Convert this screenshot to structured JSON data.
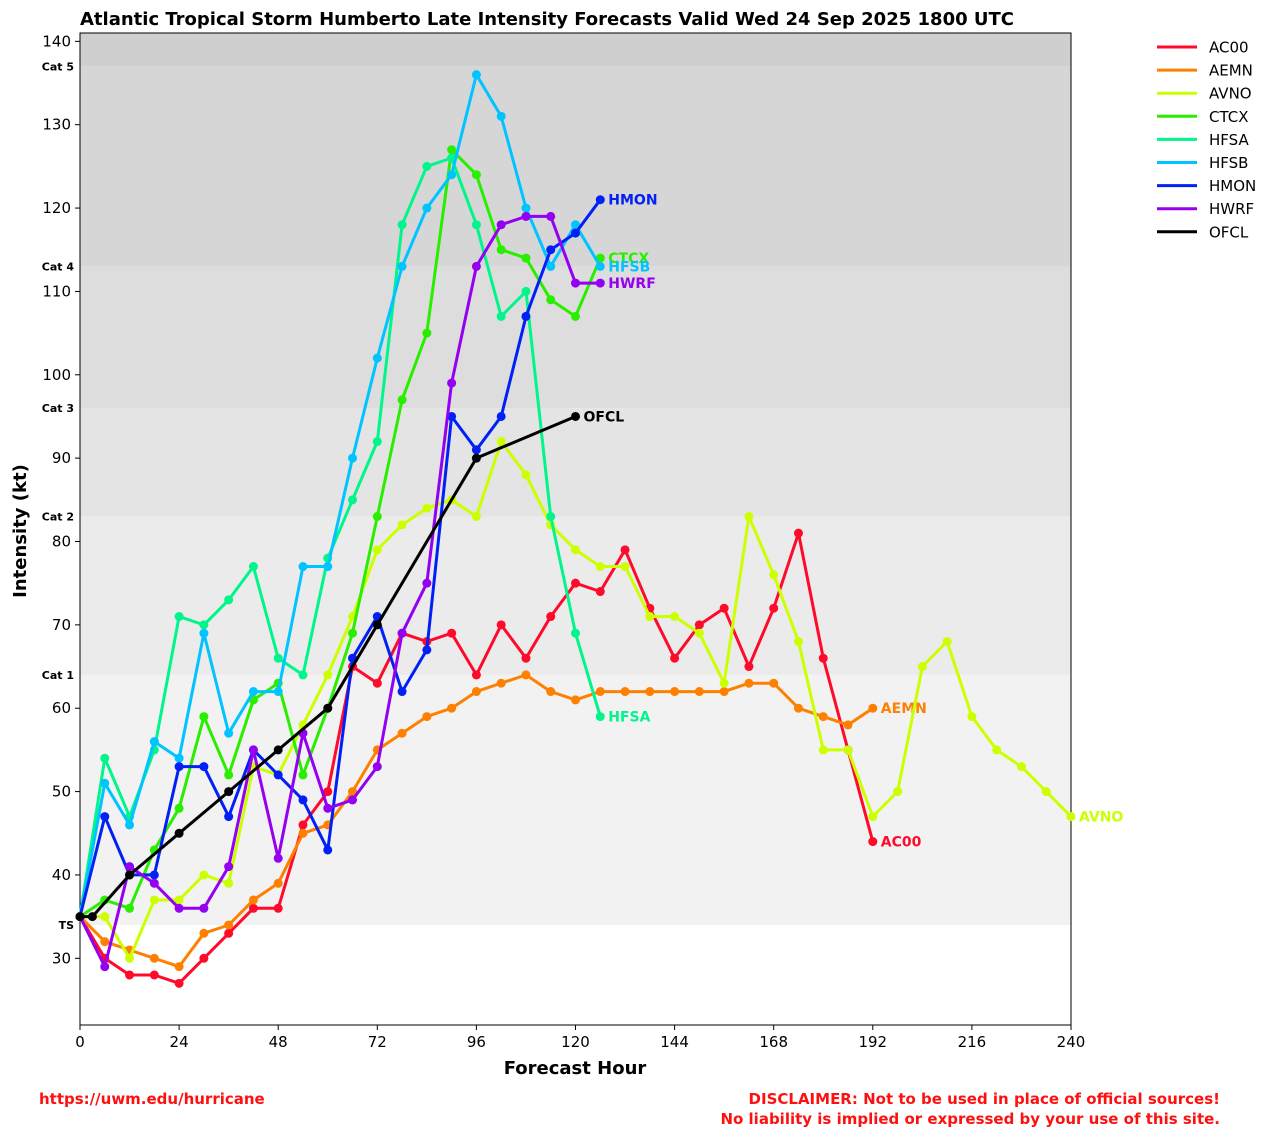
{
  "chart_data": {
    "type": "line",
    "title": "Atlantic Tropical Storm Humberto Late Intensity Forecasts Valid Wed 24 Sep 2025 1800 UTC",
    "xlabel": "Forecast Hour",
    "ylabel": "Intensity (kt)",
    "xlim": [
      0,
      240
    ],
    "ylim": [
      22,
      141
    ],
    "xticks": [
      0,
      24,
      48,
      72,
      96,
      120,
      144,
      168,
      192,
      216,
      240
    ],
    "yticks": [
      30,
      40,
      50,
      60,
      70,
      80,
      90,
      100,
      110,
      120,
      130,
      140
    ],
    "grid": false,
    "legend_position": "outside-right",
    "categories": [
      {
        "label": "TS",
        "value": 34,
        "color": "#f2f2f2"
      },
      {
        "label": "Cat 1",
        "value": 64,
        "color": "#ebebeb"
      },
      {
        "label": "Cat 2",
        "value": 83,
        "color": "#e4e4e4"
      },
      {
        "label": "Cat 3",
        "value": 96,
        "color": "#dddddd"
      },
      {
        "label": "Cat 4",
        "value": 113,
        "color": "#d6d6d6"
      },
      {
        "label": "Cat 5",
        "value": 137,
        "color": "#cfcfcf"
      }
    ],
    "series": [
      {
        "name": "AC00",
        "color": "#ff0a2b",
        "end_label": "AC00",
        "x": [
          0,
          6,
          12,
          18,
          24,
          30,
          36,
          42,
          48,
          54,
          60,
          66,
          72,
          78,
          84,
          90,
          96,
          102,
          108,
          114,
          120,
          126,
          132,
          138,
          144,
          150,
          156,
          162,
          168,
          174,
          180,
          186,
          192
        ],
        "y": [
          35,
          30,
          28,
          28,
          27,
          30,
          33,
          36,
          36,
          46,
          50,
          65,
          63,
          69,
          68,
          69,
          64,
          70,
          66,
          71,
          75,
          74,
          79,
          72,
          66,
          70,
          72,
          65,
          72,
          81,
          66,
          55,
          44
        ]
      },
      {
        "name": "AEMN",
        "color": "#ff8000",
        "end_label": "AEMN",
        "x": [
          0,
          6,
          12,
          18,
          24,
          30,
          36,
          42,
          48,
          54,
          60,
          66,
          72,
          78,
          84,
          90,
          96,
          102,
          108,
          114,
          120,
          126,
          132,
          138,
          144,
          150,
          156,
          162,
          168,
          174,
          180,
          186,
          192
        ],
        "y": [
          35,
          32,
          31,
          30,
          29,
          33,
          34,
          37,
          39,
          45,
          46,
          50,
          55,
          57,
          59,
          60,
          62,
          63,
          64,
          62,
          61,
          62,
          62,
          62,
          62,
          62,
          62,
          63,
          63,
          60,
          59,
          58,
          60
        ]
      },
      {
        "name": "AVNO",
        "color": "#ccff00",
        "end_label": "AVNO",
        "x": [
          0,
          6,
          12,
          18,
          24,
          30,
          36,
          42,
          48,
          54,
          60,
          66,
          72,
          78,
          84,
          90,
          96,
          102,
          108,
          114,
          120,
          126,
          132,
          138,
          144,
          150,
          156,
          162,
          168,
          174,
          180,
          186,
          192,
          198,
          204,
          210,
          216,
          222,
          228,
          234,
          240
        ],
        "y": [
          35,
          35,
          30,
          37,
          37,
          40,
          39,
          53,
          52,
          58,
          64,
          71,
          79,
          82,
          84,
          85,
          83,
          92,
          88,
          82,
          79,
          77,
          77,
          71,
          71,
          69,
          63,
          83,
          76,
          68,
          55,
          55,
          47,
          50,
          65,
          68,
          59,
          55,
          53,
          50,
          47
        ]
      },
      {
        "name": "CTCX",
        "color": "#2aee00",
        "end_label": "CTCX",
        "x": [
          0,
          6,
          12,
          18,
          24,
          30,
          36,
          42,
          48,
          54,
          60,
          66,
          72,
          78,
          84,
          90,
          96,
          102,
          108,
          114,
          120,
          126
        ],
        "y": [
          35,
          37,
          36,
          43,
          48,
          59,
          52,
          61,
          63,
          52,
          60,
          69,
          83,
          97,
          105,
          127,
          124,
          115,
          114,
          109,
          107,
          114
        ]
      },
      {
        "name": "HFSA",
        "color": "#00f58a",
        "end_label": "HFSA",
        "x": [
          0,
          6,
          12,
          18,
          24,
          30,
          36,
          42,
          48,
          54,
          60,
          66,
          72,
          78,
          84,
          90,
          96,
          102,
          108,
          114,
          120,
          126
        ],
        "y": [
          35,
          54,
          47,
          55,
          71,
          70,
          73,
          77,
          66,
          64,
          78,
          85,
          92,
          118,
          125,
          126,
          118,
          107,
          110,
          83,
          69,
          59
        ]
      },
      {
        "name": "HFSB",
        "color": "#00c4ff",
        "end_label": "HFSB",
        "x": [
          0,
          6,
          12,
          18,
          24,
          30,
          36,
          42,
          48,
          54,
          60,
          66,
          72,
          78,
          84,
          90,
          96,
          102,
          108,
          114,
          120,
          126
        ],
        "y": [
          35,
          51,
          46,
          56,
          54,
          69,
          57,
          62,
          62,
          77,
          77,
          90,
          102,
          113,
          120,
          124,
          136,
          131,
          120,
          113,
          118,
          113
        ]
      },
      {
        "name": "HMON",
        "color": "#0020f5",
        "end_label": "HMON",
        "x": [
          0,
          6,
          12,
          18,
          24,
          30,
          36,
          42,
          48,
          54,
          60,
          66,
          72,
          78,
          84,
          90,
          96,
          102,
          108,
          114,
          120,
          126
        ],
        "y": [
          35,
          47,
          40,
          40,
          53,
          53,
          47,
          55,
          52,
          49,
          43,
          66,
          71,
          62,
          67,
          95,
          91,
          95,
          107,
          115,
          117,
          121
        ]
      },
      {
        "name": "HWRF",
        "color": "#9400f0",
        "end_label": "HWRF",
        "x": [
          0,
          6,
          12,
          18,
          24,
          30,
          36,
          42,
          48,
          54,
          60,
          66,
          72,
          78,
          84,
          90,
          96,
          102,
          108,
          114,
          120,
          126
        ],
        "y": [
          35,
          29,
          41,
          39,
          36,
          36,
          41,
          55,
          42,
          57,
          48,
          49,
          53,
          69,
          75,
          99,
          113,
          118,
          119,
          119,
          111,
          111
        ]
      },
      {
        "name": "OFCL",
        "color": "#000000",
        "end_label": "OFCL",
        "x": [
          0,
          3,
          12,
          24,
          36,
          48,
          60,
          72,
          96,
          120
        ],
        "y": [
          35,
          35,
          40,
          45,
          50,
          55,
          60,
          70,
          90,
          95
        ]
      }
    ]
  },
  "footer": {
    "url": "https://uwm.edu/hurricane",
    "disclaimer_line1": "DISCLAIMER: Not to be used in place of official sources!",
    "disclaimer_line2": "No liability is implied or expressed by your use of this site."
  }
}
